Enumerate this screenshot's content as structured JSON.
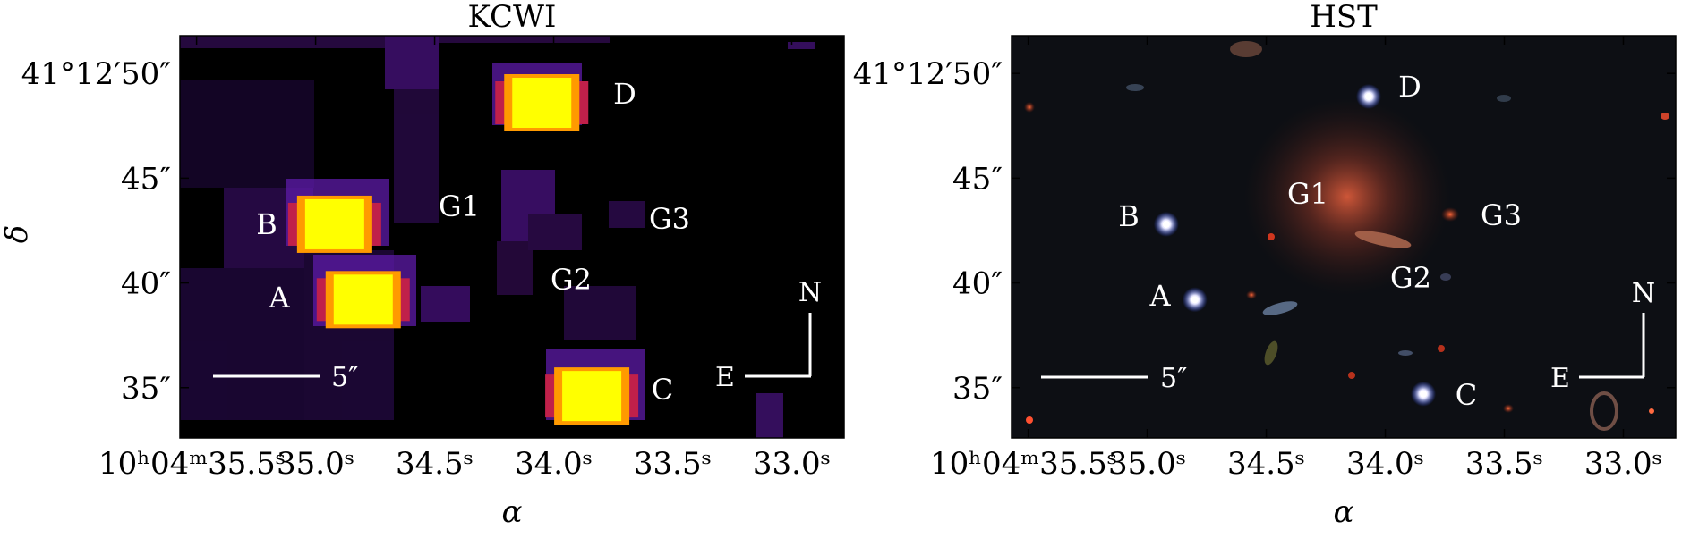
{
  "figure": {
    "panels": [
      {
        "id": "kcwi",
        "title": "KCWI",
        "sources": [
          {
            "label": "D",
            "ra_s": 34.05,
            "dec": 48.6,
            "type": "quasar"
          },
          {
            "label": "B",
            "ra_s": 34.92,
            "dec": 42.8,
            "type": "quasar"
          },
          {
            "label": "A",
            "ra_s": 34.8,
            "dec": 39.2,
            "type": "quasar"
          },
          {
            "label": "C",
            "ra_s": 33.84,
            "dec": 34.6,
            "type": "quasar"
          }
        ],
        "galaxy_labels": [
          {
            "label": "G1"
          },
          {
            "label": "G2"
          },
          {
            "label": "G3"
          }
        ],
        "compass": {
          "north": "N",
          "east": "E"
        },
        "scale_bar": {
          "label": "5″",
          "length_arcsec": 5
        }
      },
      {
        "id": "hst",
        "title": "HST",
        "sources": [
          {
            "label": "D",
            "ra_s": 34.07,
            "dec": 48.9,
            "type": "quasar"
          },
          {
            "label": "B",
            "ra_s": 34.92,
            "dec": 42.8,
            "type": "quasar"
          },
          {
            "label": "A",
            "ra_s": 34.8,
            "dec": 39.2,
            "type": "quasar"
          },
          {
            "label": "C",
            "ra_s": 33.84,
            "dec": 34.7,
            "type": "quasar"
          }
        ],
        "galaxy_labels": [
          {
            "label": "G1"
          },
          {
            "label": "G2"
          },
          {
            "label": "G3"
          }
        ],
        "compass": {
          "north": "N",
          "east": "E"
        },
        "scale_bar": {
          "label": "5″",
          "length_arcsec": 5
        }
      }
    ],
    "x_axis": {
      "label": "α",
      "tick_labels": [
        "10ʰ04ᵐ35.5ˢ",
        "35.0ˢ",
        "34.5ˢ",
        "34.0ˢ",
        "33.5ˢ",
        "33.0ˢ"
      ],
      "tick_values_s": [
        35.5,
        35.0,
        34.5,
        34.0,
        33.5,
        33.0
      ]
    },
    "y_axis": {
      "label": "δ",
      "tick_labels": [
        "41°12′50″",
        "45″",
        "40″",
        "35″"
      ],
      "tick_values_arcsec": [
        50,
        45,
        40,
        35
      ]
    },
    "colors": {
      "kcwi_background": "#000000",
      "kcwi_glow": "#6a1fb0",
      "kcwi_core": "#ffff00",
      "hst_background": "#0d0f14",
      "hst_galaxy": "#c2553a"
    }
  }
}
